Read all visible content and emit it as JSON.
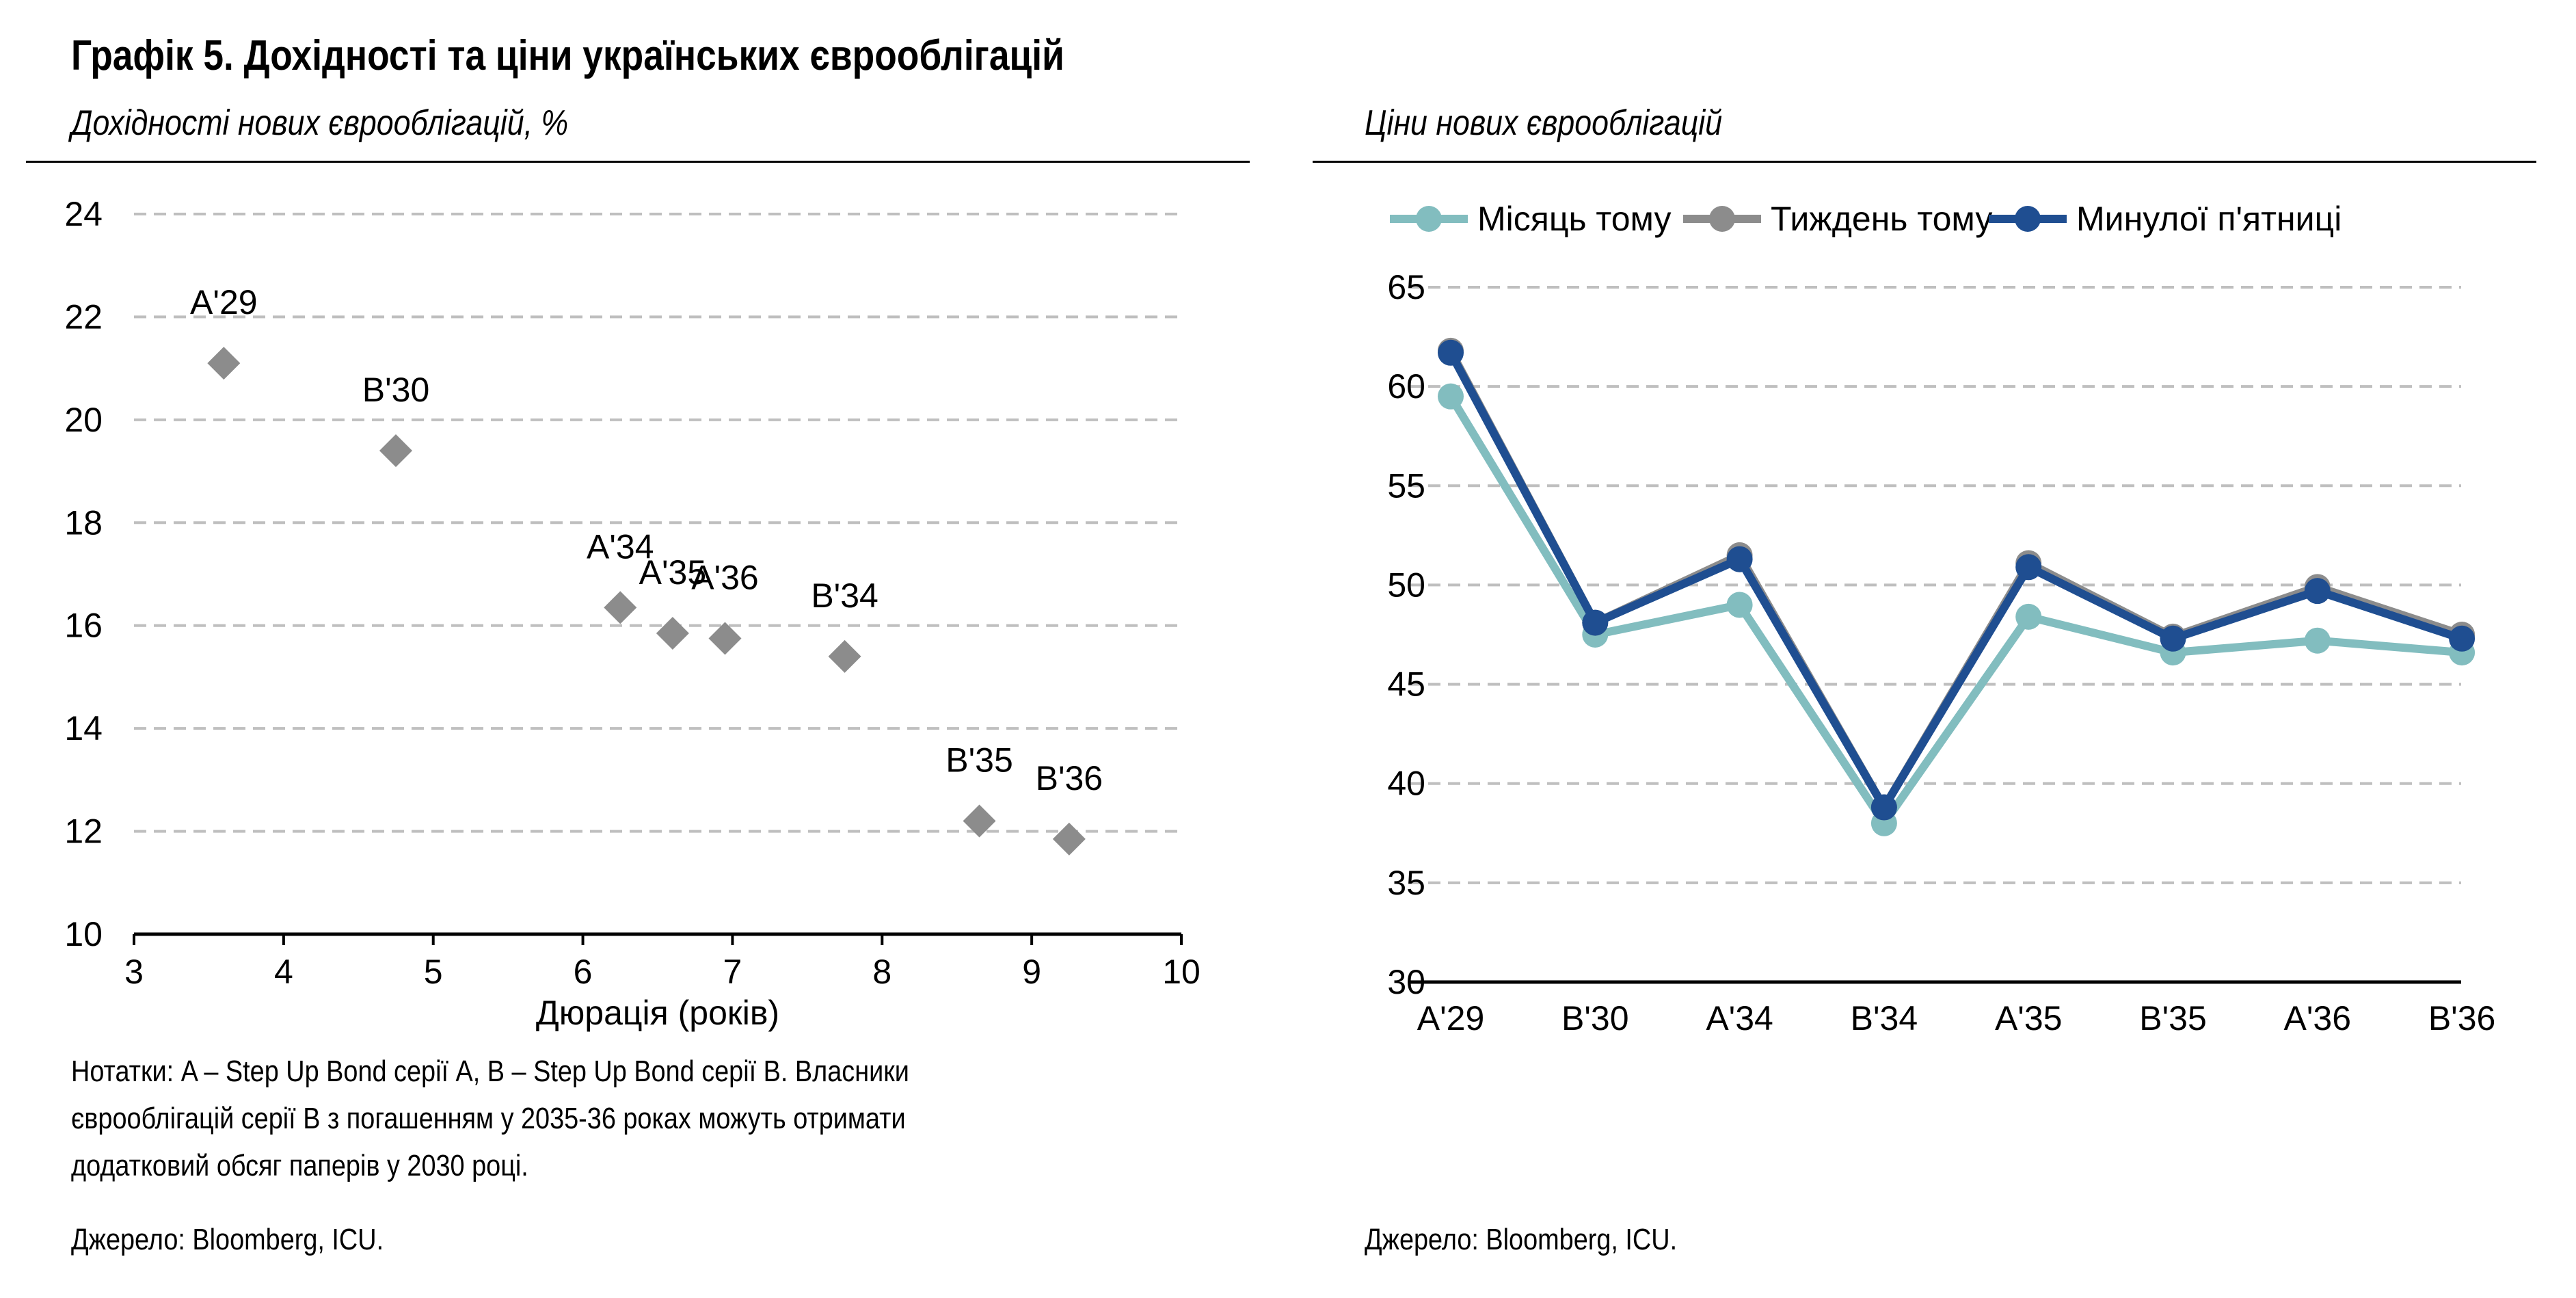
{
  "title": "Графік 5. Дохідності та ціни українських єврооблігацій",
  "notes": [
    "Нотатки: A – Step Up Bond серії А, B – Step Up Bond серії B. Власники",
    "єврооблігацій серії B з погашенням у 2035-36 роках можуть отримати",
    "додатковий обсяг паперів у 2030 році."
  ],
  "chart_data": [
    {
      "type": "scatter",
      "subtitle": "Дохідності нових єврооблігацій, %",
      "xlabel": "Дюрація (років)",
      "ylabel": "",
      "xlim": [
        3,
        10
      ],
      "ylim": [
        10,
        24
      ],
      "xticks": [
        "3",
        "4",
        "5",
        "6",
        "7",
        "8",
        "9",
        "10"
      ],
      "yticks": [
        "10",
        "12",
        "14",
        "16",
        "18",
        "20",
        "22",
        "24"
      ],
      "grid": true,
      "marker_color": "#8C8C8C",
      "points": [
        {
          "label": "A'29",
          "x": 3.6,
          "y": 21.1
        },
        {
          "label": "B'30",
          "x": 4.75,
          "y": 19.4
        },
        {
          "label": "A'34",
          "x": 6.25,
          "y": 16.35
        },
        {
          "label": "A'35",
          "x": 6.6,
          "y": 15.85
        },
        {
          "label": "A'36",
          "x": 6.95,
          "y": 15.75
        },
        {
          "label": "B'34",
          "x": 7.75,
          "y": 15.4
        },
        {
          "label": "B'35",
          "x": 8.65,
          "y": 12.2
        },
        {
          "label": "B'36",
          "x": 9.25,
          "y": 11.85
        }
      ],
      "source": "Джерело: Bloomberg, ICU."
    },
    {
      "type": "line",
      "subtitle": "Ціни нових єврооблігацій",
      "categories": [
        "A'29",
        "B'30",
        "A'34",
        "B'34",
        "A'35",
        "B'35",
        "A'36",
        "B'36"
      ],
      "ylim": [
        30,
        65
      ],
      "yticks": [
        "30",
        "35",
        "40",
        "45",
        "50",
        "55",
        "60",
        "65"
      ],
      "grid": true,
      "legend_position": "top",
      "series": [
        {
          "name": "Місяць тому",
          "color": "#82BDBF",
          "values": [
            59.5,
            47.5,
            49.0,
            38.0,
            48.4,
            46.6,
            47.2,
            46.6
          ]
        },
        {
          "name": "Тиждень тому",
          "color": "#8C8C8C",
          "values": [
            61.8,
            48.1,
            51.5,
            38.8,
            51.1,
            47.4,
            49.9,
            47.5
          ]
        },
        {
          "name": "Минулої п'ятниці",
          "color": "#1F4E91",
          "values": [
            61.7,
            48.1,
            51.3,
            38.8,
            50.9,
            47.3,
            49.7,
            47.3
          ]
        }
      ],
      "source": "Джерело: Bloomberg, ICU."
    }
  ]
}
